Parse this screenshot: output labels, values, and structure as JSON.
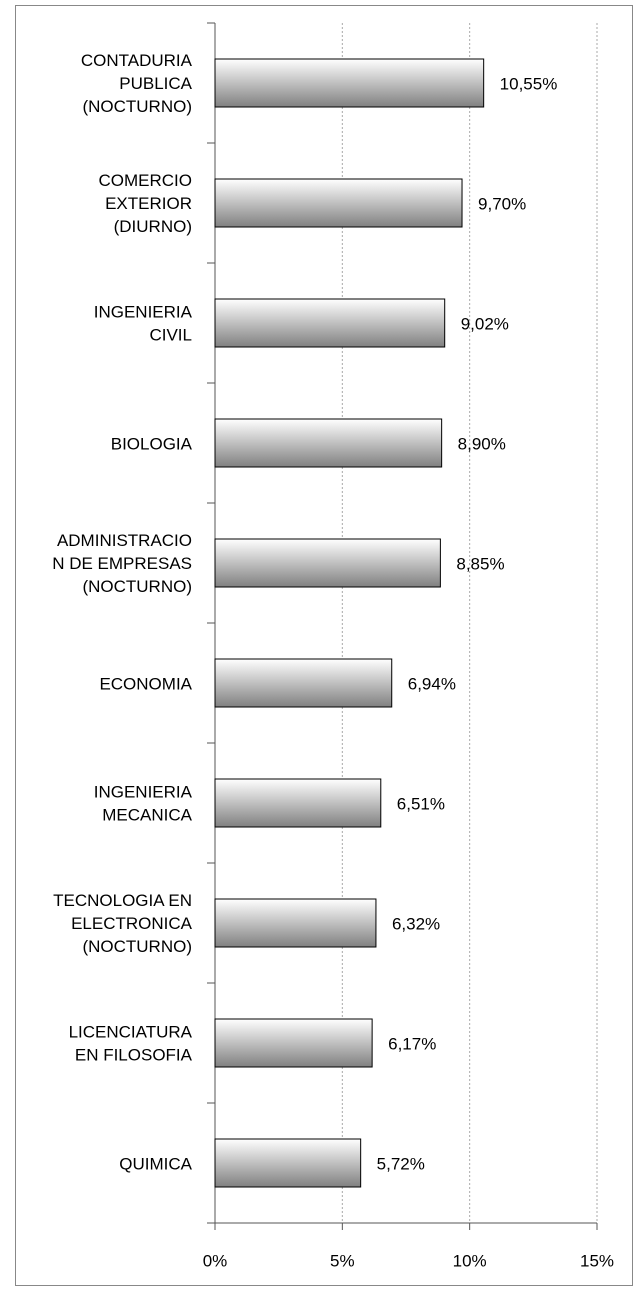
{
  "chart_data": {
    "type": "barh",
    "categories": [
      "CONTADURIA\nPUBLICA\n(NOCTURNO)",
      "COMERCIO\nEXTERIOR\n(DIURNO)",
      "INGENIERIA\nCIVIL",
      "BIOLOGIA",
      "ADMINISTRACIO\nN DE EMPRESAS\n(NOCTURNO)",
      "ECONOMIA",
      "INGENIERIA\nMECANICA",
      "TECNOLOGIA EN\nELECTRONICA\n(NOCTURNO)",
      "LICENCIATURA\nEN FILOSOFIA",
      "QUIMICA"
    ],
    "values": [
      10.55,
      9.7,
      9.02,
      8.9,
      8.85,
      6.94,
      6.51,
      6.32,
      6.17,
      5.72
    ],
    "value_labels": [
      "10,55%",
      "9,70%",
      "9,02%",
      "8,90%",
      "8,85%",
      "6,94%",
      "6,51%",
      "6,32%",
      "6,17%",
      "5,72%"
    ],
    "color": "#808080",
    "xlim": [
      0,
      15
    ],
    "xticks": [
      {
        "value": 0,
        "label": "0%"
      },
      {
        "value": 5,
        "label": "5%"
      },
      {
        "value": 10,
        "label": "10%"
      },
      {
        "value": 15,
        "label": "15%"
      }
    ],
    "grid": true
  }
}
